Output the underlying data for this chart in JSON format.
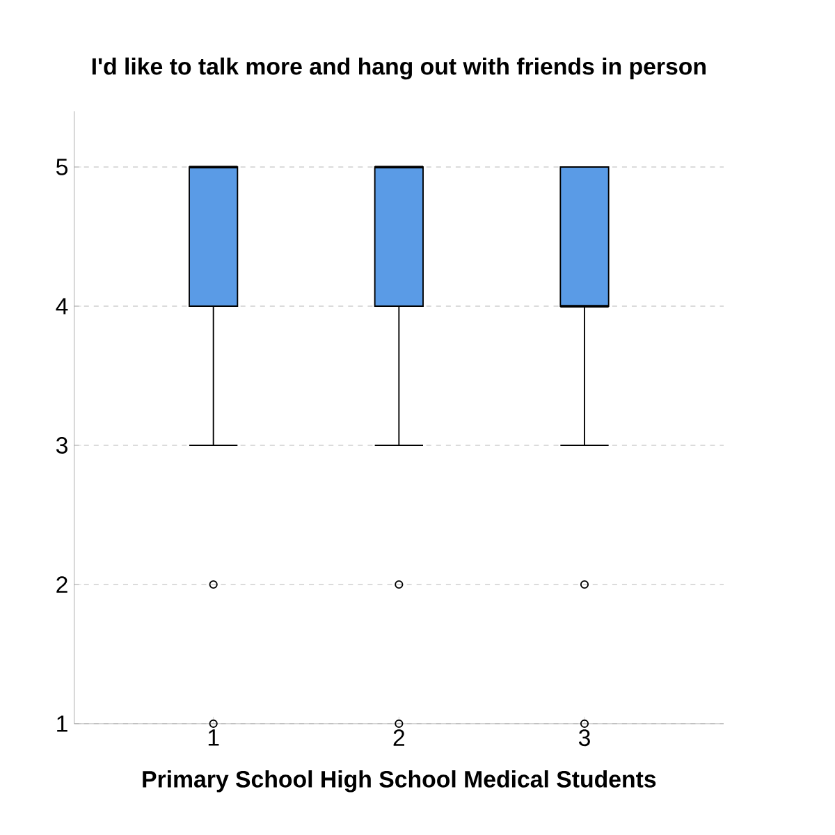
{
  "chart_data": {
    "type": "box",
    "title": "I'd like to talk more and hang out with friends in person",
    "categories": [
      "1",
      "2",
      "3"
    ],
    "xlabel": "Primary School   High School   Medical Students",
    "boxes": [
      {
        "low": 3,
        "q1": 4,
        "median": 5,
        "q3": 5,
        "high": 5,
        "outliers": [
          2,
          1
        ]
      },
      {
        "low": 3,
        "q1": 4,
        "median": 5,
        "q3": 5,
        "high": 5,
        "outliers": [
          2,
          1
        ]
      },
      {
        "low": 3,
        "q1": 4,
        "median": 4,
        "q3": 5,
        "high": 5,
        "outliers": [
          2,
          1
        ]
      }
    ],
    "color": "#5a9be6",
    "ylim": [
      1,
      5.4
    ],
    "yticks": [
      1,
      2,
      3,
      4,
      5
    ],
    "grid": "y",
    "marker": "circle"
  }
}
